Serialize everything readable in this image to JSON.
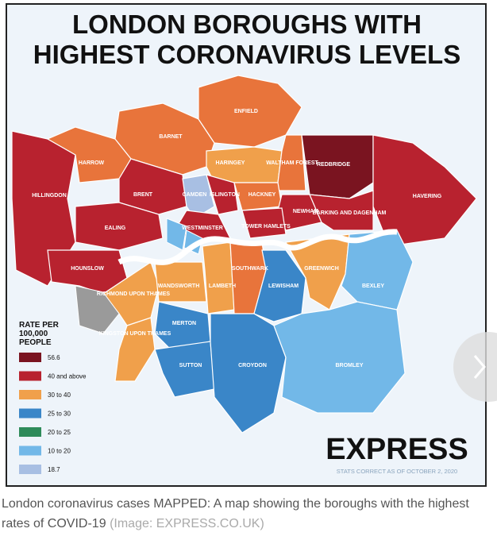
{
  "map": {
    "title": [
      "LONDON BOROUGHS WITH",
      "HIGHEST CORONAVIRUS LEVELS"
    ],
    "boroughs": [
      {
        "label": "HILLINGDON",
        "color": "#b8222f"
      },
      {
        "label": "HARROW",
        "color": "#e8743b"
      },
      {
        "label": "BARNET",
        "color": "#e8743b"
      },
      {
        "label": "ENFIELD",
        "color": "#e8743b"
      },
      {
        "label": "HARINGEY",
        "color": "#f0a04b"
      },
      {
        "label": "WALTHAM FOREST",
        "color": "#e8743b"
      },
      {
        "label": "REDBRIDGE",
        "color": "#7a1420"
      },
      {
        "label": "HAVERING",
        "color": "#b8222f"
      },
      {
        "label": "BRENT",
        "color": "#b8222f"
      },
      {
        "label": "EALING",
        "color": "#b8222f"
      },
      {
        "label": "CAMDEN",
        "color": "#a8bfe3"
      },
      {
        "label": "ISLINGTON",
        "color": "#b8222f"
      },
      {
        "label": "HACKNEY",
        "color": "#e8743b"
      },
      {
        "label": "WESTMINSTER",
        "color": "#b8222f"
      },
      {
        "label": "NEWHAM",
        "color": "#b8222f"
      },
      {
        "label": "BARKING AND DAGENHAM",
        "color": "#b8222f"
      },
      {
        "label": "TOWER HAMLETS",
        "color": "#b8222f"
      },
      {
        "label": "HOUNSLOW",
        "color": "#b8222f"
      },
      {
        "label": "RICHMOND UPON THAMES",
        "color": "#f0a04b"
      },
      {
        "label": "KINGSTON UPON THAMES",
        "color": "#f0a04b"
      },
      {
        "label": "WANDSWORTH",
        "color": "#f0a04b"
      },
      {
        "label": "LAMBETH",
        "color": "#f0a04b"
      },
      {
        "label": "SOUTHWARK",
        "color": "#e8743b"
      },
      {
        "label": "LEWISHAM",
        "color": "#3a86c8"
      },
      {
        "label": "GREENWICH",
        "color": "#f0a04b"
      },
      {
        "label": "BEXLEY",
        "color": "#72b8e8"
      },
      {
        "label": "MERTON",
        "color": "#3a86c8"
      },
      {
        "label": "SUTTON",
        "color": "#3a86c8"
      },
      {
        "label": "CROYDON",
        "color": "#3a86c8"
      },
      {
        "label": "BROMLEY",
        "color": "#72b8e8"
      }
    ],
    "legend": {
      "title": [
        "RATE PER",
        "100,000",
        "PEOPLE"
      ],
      "items": [
        {
          "label": "56.6",
          "color": "#7a1420"
        },
        {
          "label": "40 and above",
          "color": "#b8222f"
        },
        {
          "label": "30 to 40",
          "color": "#f0a04b"
        },
        {
          "label": "25 to 30",
          "color": "#3a86c8"
        },
        {
          "label": "20 to 25",
          "color": "#2e8b5a"
        },
        {
          "label": "10 to 20",
          "color": "#72b8e8"
        },
        {
          "label": "18.7",
          "color": "#a8bfe3"
        }
      ]
    },
    "logo": "EXPRESS",
    "note": "STATS CORRECT AS OF OCTOBER 2, 2020",
    "caption": "London coronavirus cases MAPPED: A map showing the boroughs with the highest rates of COVID-19",
    "credit": "(Image: EXPRESS.CO.UK)"
  }
}
